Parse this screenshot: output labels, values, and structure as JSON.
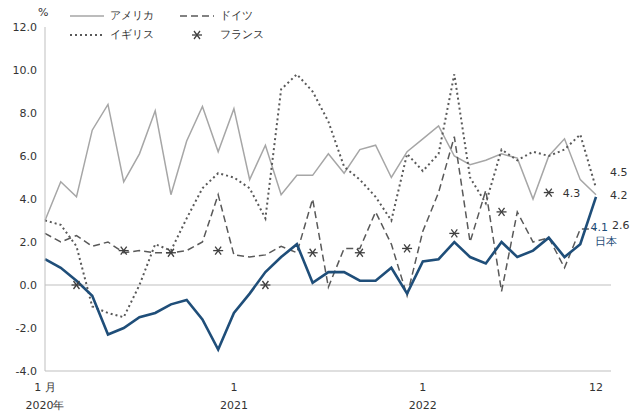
{
  "chart_data": {
    "type": "line",
    "y_label": "%",
    "categories": [
      "1 月",
      null,
      null,
      null,
      null,
      null,
      null,
      null,
      null,
      null,
      null,
      null,
      "1",
      null,
      null,
      null,
      null,
      null,
      null,
      null,
      null,
      null,
      null,
      null,
      "1",
      null,
      null,
      null,
      null,
      null,
      null,
      null,
      null,
      null,
      null,
      "12"
    ],
    "year_labels": [
      "2020年",
      null,
      null,
      null,
      null,
      null,
      null,
      null,
      null,
      null,
      null,
      null,
      "2021",
      null,
      null,
      null,
      null,
      null,
      null,
      null,
      null,
      null,
      null,
      null,
      "2022",
      null,
      null,
      null,
      null,
      null,
      null,
      null,
      null,
      null,
      null,
      null
    ],
    "ylim": [
      -4,
      12
    ],
    "yticks": [
      {
        "value": -4,
        "label": "-4.0"
      },
      {
        "value": -2,
        "label": "-2.0"
      },
      {
        "value": 0,
        "label": "0.0"
      },
      {
        "value": 2,
        "label": "2.0"
      },
      {
        "value": 4,
        "label": "4.0"
      },
      {
        "value": 6,
        "label": "6.0"
      },
      {
        "value": 8,
        "label": "8.0"
      },
      {
        "value": 10,
        "label": "10.0"
      },
      {
        "value": 12,
        "label": "12.0"
      }
    ],
    "grid": false,
    "hlines": [
      0
    ],
    "series": [
      {
        "name": "アメリカ",
        "color": "#a6a6a6",
        "line_style": "solid",
        "marker": "none",
        "end_labels": [
          "4.2"
        ],
        "values": [
          3.0,
          4.8,
          4.1,
          7.2,
          8.4,
          4.8,
          6.1,
          8.1,
          4.2,
          6.7,
          8.3,
          6.2,
          8.2,
          4.9,
          6.5,
          4.2,
          5.1,
          5.1,
          6.1,
          5.2,
          6.3,
          6.5,
          5.0,
          6.2,
          6.8,
          7.4,
          6.0,
          5.6,
          5.8,
          6.1,
          5.9,
          4.0,
          6.0,
          6.8,
          4.9,
          4.2
        ]
      },
      {
        "name": "ドイツ",
        "color": "#595959",
        "line_style": "dashed",
        "marker": "none",
        "end_labels": [
          "2.6"
        ],
        "values": [
          2.4,
          2.0,
          2.3,
          1.8,
          2.0,
          1.5,
          1.6,
          1.5,
          1.5,
          1.6,
          2.0,
          4.2,
          1.4,
          1.3,
          1.4,
          1.8,
          1.5,
          4.0,
          -0.1,
          1.7,
          1.7,
          3.4,
          1.9,
          -0.5,
          2.5,
          4.3,
          6.9,
          2.0,
          4.4,
          -0.3,
          3.4,
          2.0,
          2.2,
          0.8,
          2.6,
          2.6
        ]
      },
      {
        "name": "イギリス",
        "color": "#595959",
        "line_style": "dotted",
        "marker": "none",
        "end_labels": [
          "4.5"
        ],
        "values": [
          3.0,
          2.8,
          1.8,
          -1.0,
          -1.3,
          -1.5,
          0.0,
          1.9,
          1.6,
          3.1,
          4.5,
          5.2,
          5.0,
          4.5,
          3.1,
          9.1,
          9.8,
          9.0,
          7.6,
          5.5,
          4.9,
          4.1,
          3.0,
          6.1,
          5.3,
          6.1,
          9.8,
          5.0,
          3.8,
          6.3,
          5.8,
          6.2,
          6.0,
          6.3,
          7.0,
          4.5
        ]
      },
      {
        "name": "フランス",
        "color": "#404040",
        "line_style": "none",
        "marker": "asterisk",
        "end_labels": [
          "4.3"
        ],
        "values": [
          null,
          null,
          0.0,
          null,
          null,
          1.6,
          null,
          null,
          1.5,
          null,
          null,
          1.6,
          null,
          null,
          0.0,
          null,
          null,
          1.5,
          null,
          null,
          1.5,
          null,
          null,
          1.7,
          null,
          null,
          2.4,
          null,
          null,
          3.4,
          null,
          null,
          4.3,
          null,
          null,
          null
        ]
      },
      {
        "name": "日本",
        "color": "#1f4e79",
        "line_style": "solid",
        "marker": "none",
        "end_labels": [
          "4.1",
          "日本"
        ],
        "values": [
          1.2,
          0.8,
          0.2,
          -0.5,
          -2.3,
          -2.0,
          -1.5,
          -1.3,
          -0.9,
          -0.7,
          -1.6,
          -3.0,
          -1.3,
          -0.4,
          0.6,
          1.3,
          1.9,
          0.1,
          0.6,
          0.6,
          0.2,
          0.2,
          0.8,
          -0.4,
          1.1,
          1.2,
          2.0,
          1.3,
          1.0,
          2.0,
          1.3,
          1.6,
          2.2,
          1.3,
          1.9,
          4.1
        ]
      }
    ]
  }
}
